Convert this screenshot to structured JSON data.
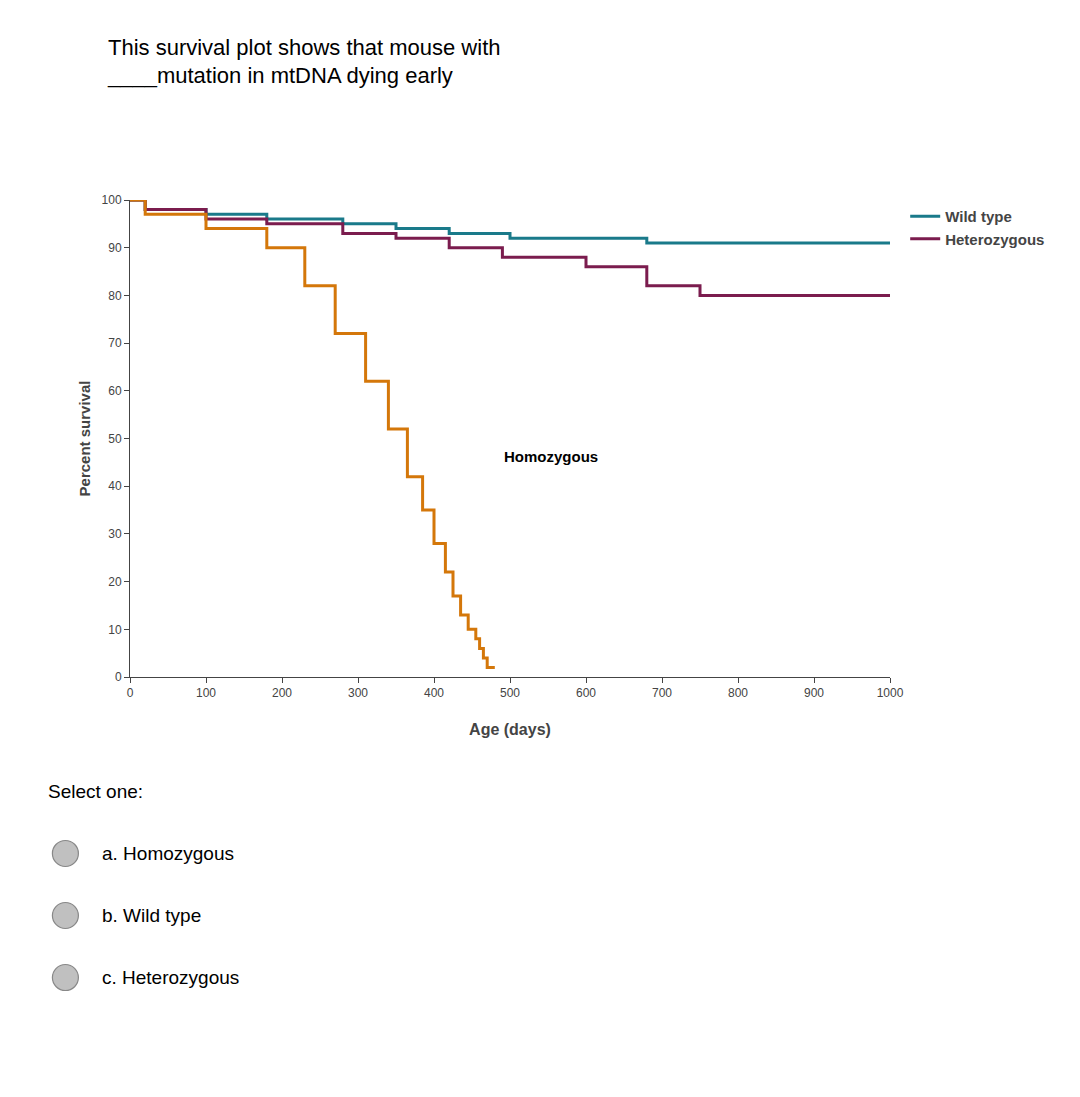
{
  "chart_data": {
    "type": "line",
    "title": "This survival plot shows that mouse with",
    "subtitle": "____mutation in mtDNA dying early",
    "x_label": "Age (days)",
    "y_label": "Percent survival",
    "xlim": [
      0,
      1000
    ],
    "ylim": [
      0,
      100
    ],
    "xticks": [
      0,
      100,
      200,
      300,
      400,
      500,
      600,
      700,
      800,
      900,
      1000
    ],
    "yticks": [
      0,
      10,
      20,
      30,
      40,
      50,
      60,
      70,
      80,
      90,
      100
    ],
    "grid": false,
    "legend": "right",
    "line_style": "steps",
    "series": [
      {
        "name": "Wild type",
        "color": "#1a7a8a",
        "x": [
          0,
          20,
          20,
          100,
          100,
          180,
          180,
          280,
          280,
          350,
          350,
          420,
          420,
          500,
          500,
          680,
          680,
          1000
        ],
        "values": [
          100,
          100,
          98,
          98,
          97,
          97,
          96,
          96,
          95,
          95,
          94,
          94,
          93,
          93,
          92,
          92,
          91,
          91
        ]
      },
      {
        "name": "Heterozygous",
        "color": "#7b1c4e",
        "x": [
          0,
          20,
          20,
          100,
          100,
          180,
          180,
          280,
          280,
          350,
          350,
          420,
          420,
          490,
          490,
          600,
          600,
          680,
          680,
          750,
          750,
          1000
        ],
        "values": [
          100,
          100,
          98,
          98,
          96,
          96,
          95,
          95,
          93,
          93,
          92,
          92,
          90,
          90,
          88,
          88,
          86,
          86,
          82,
          82,
          80,
          80
        ]
      },
      {
        "color": "#d4770a",
        "x": [
          0,
          20,
          20,
          100,
          100,
          180,
          180,
          230,
          230,
          270,
          270,
          310,
          310,
          340,
          340,
          365,
          365,
          385,
          385,
          400,
          400,
          415,
          415,
          425,
          425,
          435,
          435,
          445,
          445,
          455,
          455,
          460,
          460,
          465,
          465,
          470,
          470,
          480
        ],
        "values": [
          100,
          100,
          97,
          97,
          94,
          94,
          90,
          90,
          82,
          82,
          72,
          72,
          62,
          62,
          52,
          52,
          42,
          42,
          35,
          35,
          28,
          28,
          22,
          22,
          17,
          17,
          13,
          13,
          10,
          10,
          8,
          8,
          6,
          6,
          4,
          4,
          2,
          2
        ]
      }
    ],
    "annotations": [
      {
        "text": "Homozygous",
        "x": 490,
        "y": 44
      },
      {
        "text": "Select one:"
      },
      {
        "text": "a. Homozygous"
      },
      {
        "text": "b. Wild type"
      },
      {
        "text": "c. Heterozygous"
      }
    ]
  }
}
